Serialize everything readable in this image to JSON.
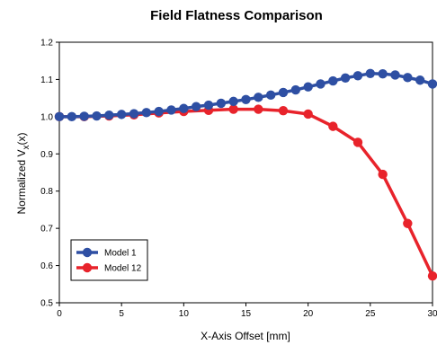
{
  "chart_data": {
    "type": "line",
    "title": "Field Flatness Comparison",
    "xlabel": "X-Axis Offset [mm]",
    "ylabel_main": "Normalized V",
    "ylabel_sub": "x",
    "ylabel_tail": "(x)",
    "xlim": [
      0,
      30
    ],
    "ylim": [
      0.5,
      1.2
    ],
    "xticks": [
      "0",
      "5",
      "10",
      "15",
      "20",
      "25",
      "30"
    ],
    "yticks": [
      "0.5",
      "0.6",
      "0.7",
      "0.8",
      "0.9",
      "1.0",
      "1.1",
      "1.2"
    ],
    "grid": false,
    "legend_position": "bottom-left",
    "series": [
      {
        "name": "Model 1",
        "color": "#2e4fa3",
        "x": [
          0,
          1,
          2,
          3,
          4,
          5,
          6,
          7,
          8,
          9,
          10,
          11,
          12,
          13,
          14,
          15,
          16,
          17,
          18,
          19,
          20,
          21,
          22,
          23,
          24,
          25,
          26,
          27,
          28,
          29,
          30
        ],
        "y": [
          1.0,
          1.0,
          1.001,
          1.002,
          1.004,
          1.006,
          1.008,
          1.011,
          1.014,
          1.018,
          1.022,
          1.027,
          1.031,
          1.036,
          1.041,
          1.046,
          1.052,
          1.058,
          1.065,
          1.072,
          1.08,
          1.088,
          1.096,
          1.104,
          1.11,
          1.116,
          1.115,
          1.112,
          1.105,
          1.098,
          1.088
        ]
      },
      {
        "name": "Model 12",
        "color": "#e8232b",
        "x": [
          0,
          2,
          4,
          6,
          8,
          10,
          12,
          14,
          16,
          18,
          20,
          22,
          24,
          26,
          28,
          30
        ],
        "y": [
          1.0,
          1.0,
          1.002,
          1.005,
          1.01,
          1.014,
          1.017,
          1.02,
          1.02,
          1.016,
          1.007,
          0.974,
          0.931,
          0.845,
          0.713,
          0.572
        ]
      }
    ]
  }
}
